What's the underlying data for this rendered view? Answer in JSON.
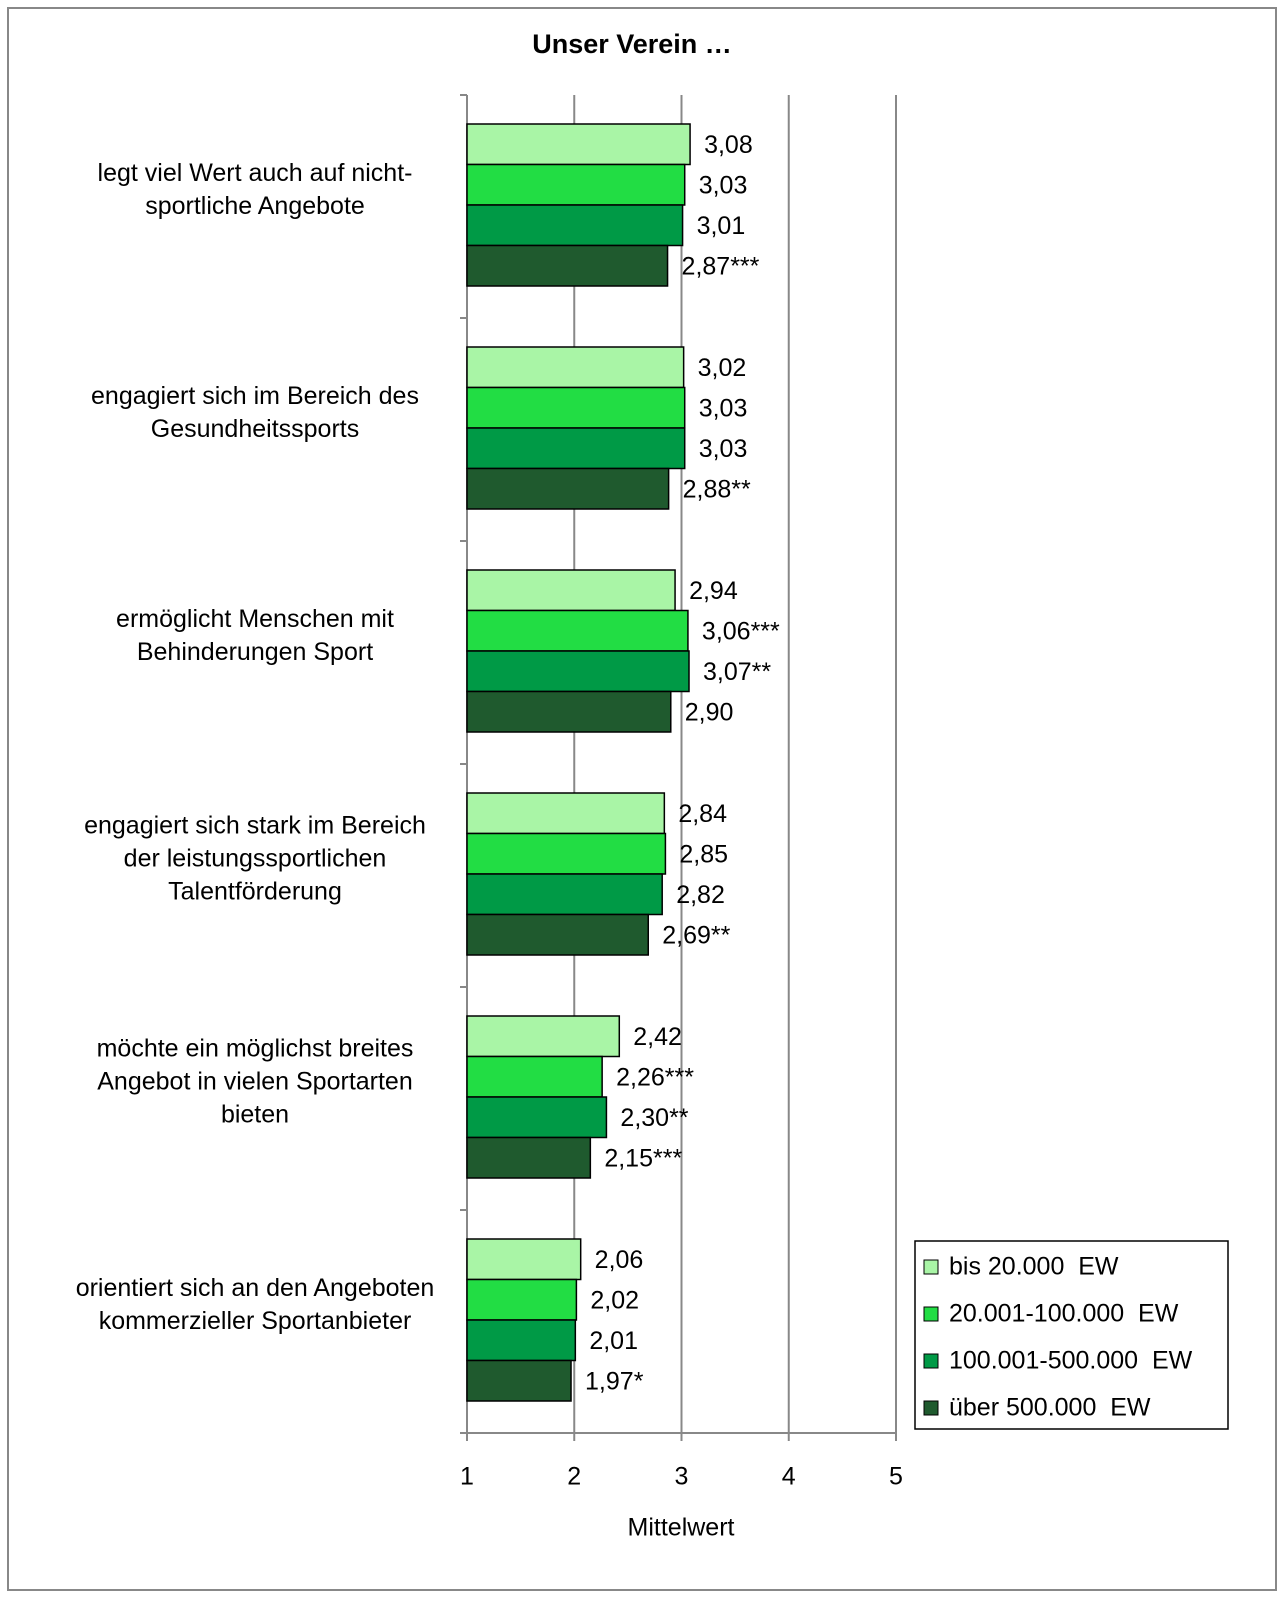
{
  "chart_data": {
    "type": "bar",
    "orientation": "horizontal",
    "title": "Unser Verein …",
    "x_label": "Mittelwert",
    "categories": [
      "legt viel Wert auch auf nicht-\nsportliche Angebote",
      "engagiert sich im Bereich des\nGesundheitssports",
      "ermöglicht Menschen mit\nBehinderungen Sport",
      "engagiert sich stark im Bereich\nder leistungssportlichen\nTalentförderung",
      "möchte ein möglichst breites\nAngebot in vielen Sportarten\nbieten",
      "orientiert sich an den Angeboten\nkommerzieller Sportanbieter"
    ],
    "series": [
      {
        "name": "bis 20.000  EW",
        "color": "#a9f5a6",
        "values": [
          3.08,
          3.02,
          2.94,
          2.84,
          2.42,
          2.06
        ],
        "value_labels": [
          "3,08",
          "3,02",
          "2,94",
          "2,84",
          "2,42",
          "2,06"
        ]
      },
      {
        "name": "20.001-100.000  EW",
        "color": "#22dd44",
        "values": [
          3.03,
          3.03,
          3.06,
          2.85,
          2.26,
          2.02
        ],
        "value_labels": [
          "3,03",
          "3,03",
          "3,06***",
          "2,85",
          "2,26***",
          "2,02"
        ]
      },
      {
        "name": "100.001-500.000  EW",
        "color": "#009a46",
        "values": [
          3.01,
          3.03,
          3.07,
          2.82,
          2.3,
          2.01
        ],
        "value_labels": [
          "3,01",
          "3,03",
          "3,07**",
          "2,82",
          "2,30**",
          "2,01"
        ]
      },
      {
        "name": "über 500.000  EW",
        "color": "#1f5a2e",
        "values": [
          2.87,
          2.88,
          2.9,
          2.69,
          2.15,
          1.97
        ],
        "value_labels": [
          "2,87***",
          "2,88**",
          "2,90",
          "2,69**",
          "2,15***",
          "1,97*"
        ]
      }
    ],
    "xlim": [
      1,
      5
    ],
    "xticks": [
      1,
      2,
      3,
      4,
      5
    ],
    "grid": true,
    "legend": "lower right"
  }
}
